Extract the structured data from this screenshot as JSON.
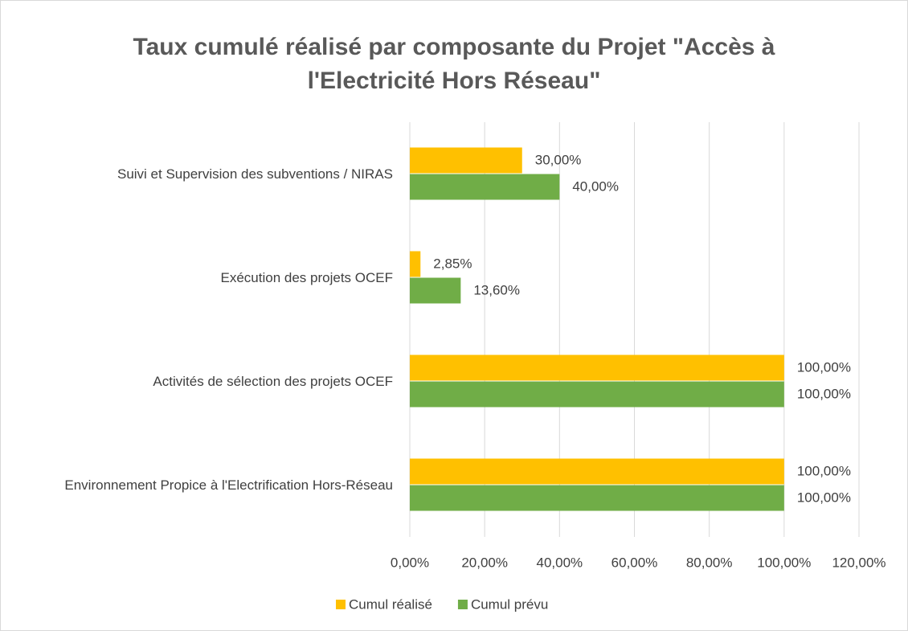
{
  "chart_data": {
    "type": "barh",
    "title": "Taux cumulé réalisé par composante du Projet \"Accès à l'Electricité Hors Réseau\"",
    "categories": [
      "Suivi et Supervision des subventions / NIRAS",
      "Exécution des projets OCEF",
      "Activités de sélection des projets OCEF",
      "Environnement Propice à l'Electrification  Hors-Réseau"
    ],
    "series": [
      {
        "name": "Cumul réalisé",
        "color": "#FFC000",
        "values": [
          30,
          2.85,
          100,
          100
        ],
        "value_labels": [
          "30,00%",
          "2,85%",
          "100,00%",
          "100,00%"
        ]
      },
      {
        "name": "Cumul prévu",
        "color": "#70AD47",
        "values": [
          40,
          13.6,
          100,
          100
        ],
        "value_labels": [
          "40,00%",
          "13,60%",
          "100,00%",
          "100,00%"
        ]
      }
    ],
    "xlim": [
      0,
      120
    ],
    "xticks": [
      {
        "value": 0,
        "label": "0,00%"
      },
      {
        "value": 20,
        "label": "20,00%"
      },
      {
        "value": 40,
        "label": "40,00%"
      },
      {
        "value": 60,
        "label": "60,00%"
      },
      {
        "value": 80,
        "label": "80,00%"
      },
      {
        "value": 100,
        "label": "100,00%"
      },
      {
        "value": 120,
        "label": "120,00%"
      }
    ],
    "grid": true,
    "legend": "bottom"
  }
}
